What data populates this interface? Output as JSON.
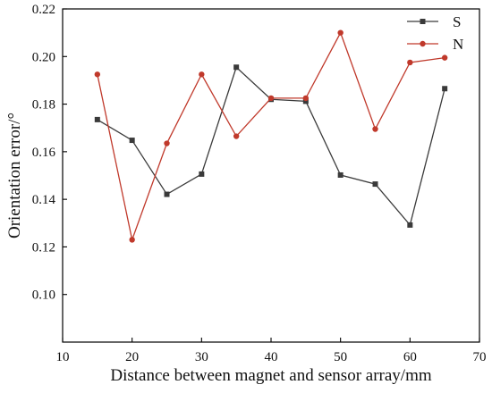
{
  "chart_data": {
    "type": "line",
    "title": "",
    "xlabel": "Distance between magnet and sensor array/mm",
    "ylabel": "Orientation error/°",
    "xlim": [
      10,
      70
    ],
    "ylim": [
      0.08,
      0.22
    ],
    "x_ticks": [
      "10",
      "20",
      "30",
      "40",
      "50",
      "60",
      "70"
    ],
    "y_ticks": [
      "0.10",
      "0.12",
      "0.14",
      "0.16",
      "0.18",
      "0.20",
      "0.22"
    ],
    "x": [
      15,
      20,
      25,
      30,
      35,
      40,
      45,
      50,
      55,
      60,
      65
    ],
    "grid": false,
    "legend_position": "top-right",
    "series": [
      {
        "name": "S",
        "color": "#3a3a3a",
        "marker": "square",
        "values": [
          0.1735,
          0.1648,
          0.1421,
          0.1506,
          0.1955,
          0.182,
          0.1812,
          0.1502,
          0.1464,
          0.1292,
          0.1865
        ]
      },
      {
        "name": "N",
        "color": "#c0392b",
        "marker": "circle",
        "values": [
          0.1925,
          0.123,
          0.1635,
          0.1925,
          0.1665,
          0.1825,
          0.1825,
          0.21,
          0.1695,
          0.1975,
          0.1995
        ]
      }
    ]
  }
}
